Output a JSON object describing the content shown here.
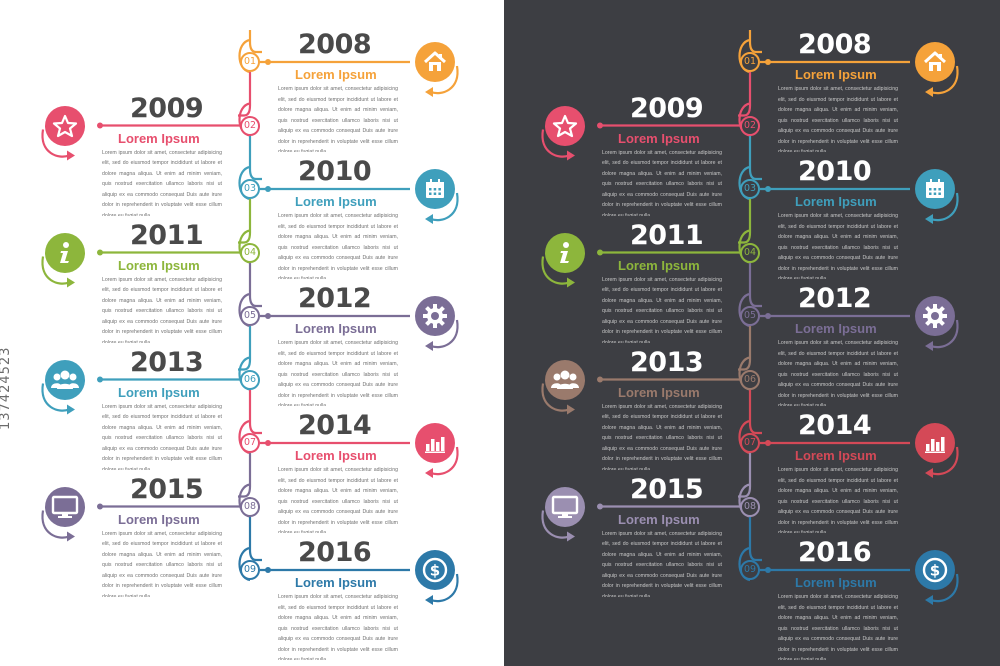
{
  "colors": {
    "orange": "#f5a23a",
    "pink": "#e74f6e",
    "teal": "#3f9fbc",
    "green": "#8db63c",
    "purple": "#7b6e96",
    "brown": "#9a7a6c",
    "red": "#d44957",
    "light_purple": "#9b8fb1",
    "blue": "#2d79a8",
    "dark_bg": "#3d3e43"
  },
  "watermark": "137424523",
  "items": [
    {
      "num": "01",
      "year": "2008",
      "title": "Lorem Ipsum",
      "icon": "home-icon",
      "side": "right",
      "text": "Lorem ipsum dolor sit amet, consectetur adipisicing elit, sed do eiusmod tempor incididunt ut labore et dolore magna aliqua. Ut enim ad minim veniam, quis nostrud exercitation ullamco laboris nisi ut aliquip ex ea commodo consequat Duis aute irure dolor in reprehenderit in voluptate velit esse cillum dolore eu fugiat nulla."
    },
    {
      "num": "02",
      "year": "2009",
      "title": "Lorem Ipsum",
      "icon": "star-icon",
      "side": "left",
      "text": "Lorem ipsum dolor sit amet, consectetur adipisicing elit, sed do eiusmod tempor incididunt ut labore et dolore magna aliqua. Ut enim ad minim veniam, quis nostrud exercitation ullamco laboris nisi ut aliquip ex ea commodo consequat Duis aute irure dolor in reprehenderit in voluptate velit esse cillum dolore eu fugiat nulla."
    },
    {
      "num": "03",
      "year": "2010",
      "title": "Lorem Ipsum",
      "icon": "calendar-icon",
      "side": "right",
      "text": "Lorem ipsum dolor sit amet, consectetur adipisicing elit, sed do eiusmod tempor incididunt ut labore et dolore magna aliqua. Ut enim ad minim veniam, quis nostrud exercitation ullamco laboris nisi ut aliquip ex ea commodo consequat Duis aute irure dolor in reprehenderit in voluptate velit esse cillum dolore eu fugiat nulla."
    },
    {
      "num": "04",
      "year": "2011",
      "title": "Lorem Ipsum",
      "icon": "info-icon",
      "side": "left",
      "text": "Lorem ipsum dolor sit amet, consectetur adipisicing elit, sed do eiusmod tempor incididunt ut labore et dolore magna aliqua. Ut enim ad minim veniam, quis nostrud exercitation ullamco laboris nisi ut aliquip ex ea commodo consequat Duis aute irure dolor in reprehenderit in voluptate velit esse cillum dolore eu fugiat nulla."
    },
    {
      "num": "05",
      "year": "2012",
      "title": "Lorem Ipsum",
      "icon": "gear-icon",
      "side": "right",
      "text": "Lorem ipsum dolor sit amet, consectetur adipisicing elit, sed do eiusmod tempor incididunt ut labore et dolore magna aliqua. Ut enim ad minim veniam, quis nostrud exercitation ullamco laboris nisi ut aliquip ex ea commodo consequat Duis aute irure dolor in reprehenderit in voluptate velit esse cillum dolore eu fugiat nulla."
    },
    {
      "num": "06",
      "year": "2013",
      "title": "Lorem Ipsum",
      "icon": "people-icon",
      "side": "left",
      "text": "Lorem ipsum dolor sit amet, consectetur adipisicing elit, sed do eiusmod tempor incididunt ut labore et dolore magna aliqua. Ut enim ad minim veniam, quis nostrud exercitation ullamco laboris nisi ut aliquip ex ea commodo consequat Duis aute irure dolor in reprehenderit in voluptate velit esse cillum dolore eu fugiat nulla."
    },
    {
      "num": "07",
      "year": "2014",
      "title": "Lorem Ipsum",
      "icon": "bar-chart-icon",
      "side": "right",
      "text": "Lorem ipsum dolor sit amet, consectetur adipisicing elit, sed do eiusmod tempor incididunt ut labore et dolore magna aliqua. Ut enim ad minim veniam, quis nostrud exercitation ullamco laboris nisi ut aliquip ex ea commodo consequat Duis aute irure dolor in reprehenderit in voluptate velit esse cillum dolore eu fugiat nulla."
    },
    {
      "num": "08",
      "year": "2015",
      "title": "Lorem Ipsum",
      "icon": "monitor-icon",
      "side": "left",
      "text": "Lorem ipsum dolor sit amet, consectetur adipisicing elit, sed do eiusmod tempor incididunt ut labore et dolore magna aliqua. Ut enim ad minim veniam, quis nostrud exercitation ullamco laboris nisi ut aliquip ex ea commodo consequat Duis aute irure dolor in reprehenderit in voluptate velit esse cillum dolore eu fugiat nulla."
    },
    {
      "num": "09",
      "year": "2016",
      "title": "Lorem Ipsum",
      "icon": "dollar-icon",
      "side": "right",
      "text": "Lorem ipsum dolor sit amet, consectetur adipisicing elit, sed do eiusmod tempor incididunt ut labore et dolore magna aliqua. Ut enim ad minim veniam, quis nostrud exercitation ullamco laboris nisi ut aliquip ex ea commodo consequat Duis aute irure dolor in reprehenderit in voluptate velit esse cillum dolore eu fugiat nulla."
    }
  ],
  "palettes": {
    "light": [
      "orange",
      "pink",
      "teal",
      "green",
      "purple",
      "teal",
      "pink",
      "purple",
      "blue"
    ],
    "dark": [
      "orange",
      "pink",
      "teal",
      "green",
      "purple",
      "brown",
      "red",
      "light_purple",
      "blue"
    ]
  }
}
